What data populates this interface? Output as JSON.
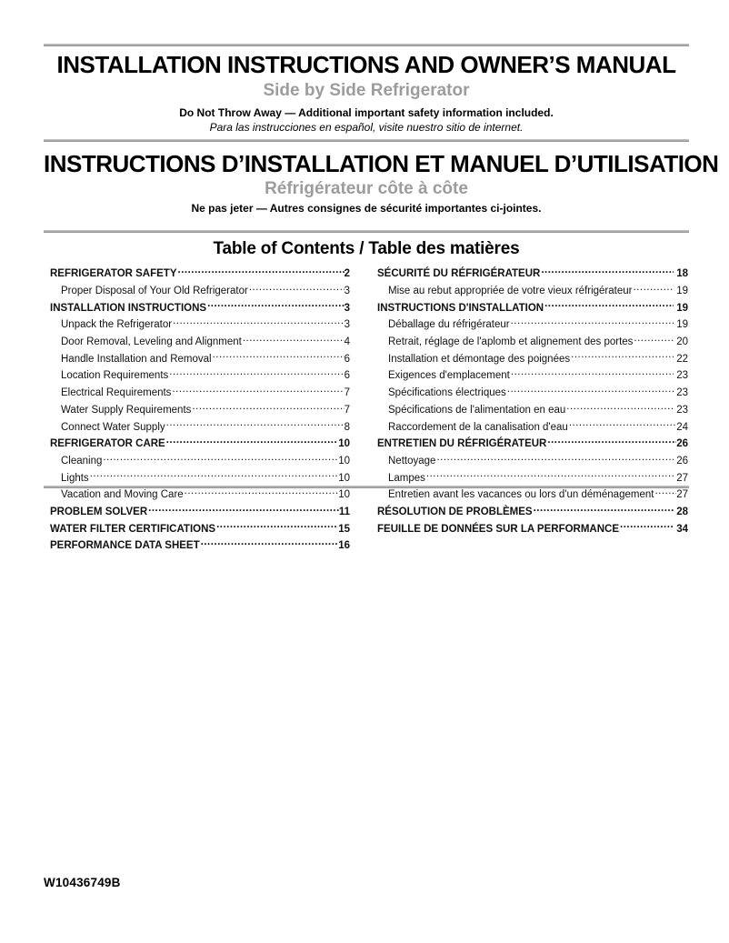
{
  "colors": {
    "subtitle_gray": "#9c9c9c",
    "rule_gray": "#a9a9a9"
  },
  "header_en": {
    "title": "INSTALLATION INSTRUCTIONS AND OWNER’S MANUAL",
    "subtitle": "Side by Side Refrigerator",
    "note_bold": "Do Not Throw Away — Additional important safety information included.",
    "note_italic": "Para las instrucciones en español, visite nuestro sitio de internet."
  },
  "header_fr": {
    "title": "INSTRUCTIONS D’INSTALLATION ET MANUEL D’UTILISATION",
    "subtitle": "Réfrigérateur côte à côte",
    "note_bold": "Ne pas jeter — Autres consignes de sécurité importantes ci-jointes."
  },
  "toc": {
    "heading": "Table of Contents / Table des matières",
    "columns": [
      {
        "entries": [
          {
            "label": "REFRIGERATOR SAFETY",
            "page": "2",
            "level": "section"
          },
          {
            "label": "Proper Disposal of Your Old Refrigerator",
            "page": "3",
            "level": "sub"
          },
          {
            "label": "INSTALLATION INSTRUCTIONS ",
            "page": "3",
            "level": "section"
          },
          {
            "label": "Unpack the Refrigerator",
            "page": "3",
            "level": "sub"
          },
          {
            "label": "Door Removal, Leveling and Alignment ",
            "page": "4",
            "level": "sub"
          },
          {
            "label": "Handle Installation and Removal",
            "page": "6",
            "level": "sub"
          },
          {
            "label": "Location Requirements",
            "page": "6",
            "level": "sub"
          },
          {
            "label": "Electrical Requirements",
            "page": "7",
            "level": "sub"
          },
          {
            "label": "Water Supply Requirements",
            "page": "7",
            "level": "sub"
          },
          {
            "label": "Connect Water Supply",
            "page": "8",
            "level": "sub"
          },
          {
            "label": "REFRIGERATOR CARE",
            "page": "10",
            "level": "section"
          },
          {
            "label": "Cleaning ",
            "page": "10",
            "level": "sub"
          },
          {
            "label": "Lights",
            "page": "10",
            "level": "sub"
          },
          {
            "label": "Vacation and Moving Care ",
            "page": "10",
            "level": "sub"
          },
          {
            "label": "PROBLEM SOLVER",
            "page": "11",
            "level": "section"
          },
          {
            "label": "WATER FILTER CERTIFICATIONS ",
            "page": "15",
            "level": "section"
          },
          {
            "label": "PERFORMANCE DATA SHEET",
            "page": "16",
            "level": "section"
          }
        ]
      },
      {
        "entries": [
          {
            "label": "SÉCURITÉ DU RÉFRIGÉRATEUR ",
            "page": " 18",
            "level": "section"
          },
          {
            "label": "Mise au rebut appropriée de votre vieux réfrigérateur",
            "page": " 19",
            "level": "sub"
          },
          {
            "label": "INSTRUCTIONS D'INSTALLATION ",
            "page": " 19",
            "level": "section"
          },
          {
            "label": "Déballage du réfrigérateur ",
            "page": " 19",
            "level": "sub"
          },
          {
            "label": "Retrait, réglage de l'aplomb et alignement des portes",
            "page": " 20",
            "level": "sub"
          },
          {
            "label": "Installation et démontage des poignées ",
            "page": " 22",
            "level": "sub"
          },
          {
            "label": "Exigences d'emplacement ",
            "page": " 23",
            "level": "sub"
          },
          {
            "label": "Spécifications électriques",
            "page": " 23",
            "level": "sub"
          },
          {
            "label": "Spécifications de l'alimentation en eau",
            "page": " 23",
            "level": "sub"
          },
          {
            "label": "Raccordement de la canalisation d'eau",
            "page": "24",
            "level": "sub"
          },
          {
            "label": "ENTRETIEN DU RÉFRIGÉRATEUR ",
            "page": "26",
            "level": "section"
          },
          {
            "label": "Nettoyage",
            "page": " 26",
            "level": "sub"
          },
          {
            "label": "Lampes ",
            "page": " 27",
            "level": "sub"
          },
          {
            "label": "Entretien avant les vacances ou lors d'un déménagement",
            "page": "27",
            "level": "sub"
          },
          {
            "label": "RÉSOLUTION DE PROBLÈMES ",
            "page": " 28",
            "level": "section"
          },
          {
            "label": "FEUILLE DE DONNÉES SUR LA PERFORMANCE",
            "page": " 34",
            "level": "section"
          }
        ]
      }
    ]
  },
  "footer": {
    "part_number": "W10436749B"
  }
}
